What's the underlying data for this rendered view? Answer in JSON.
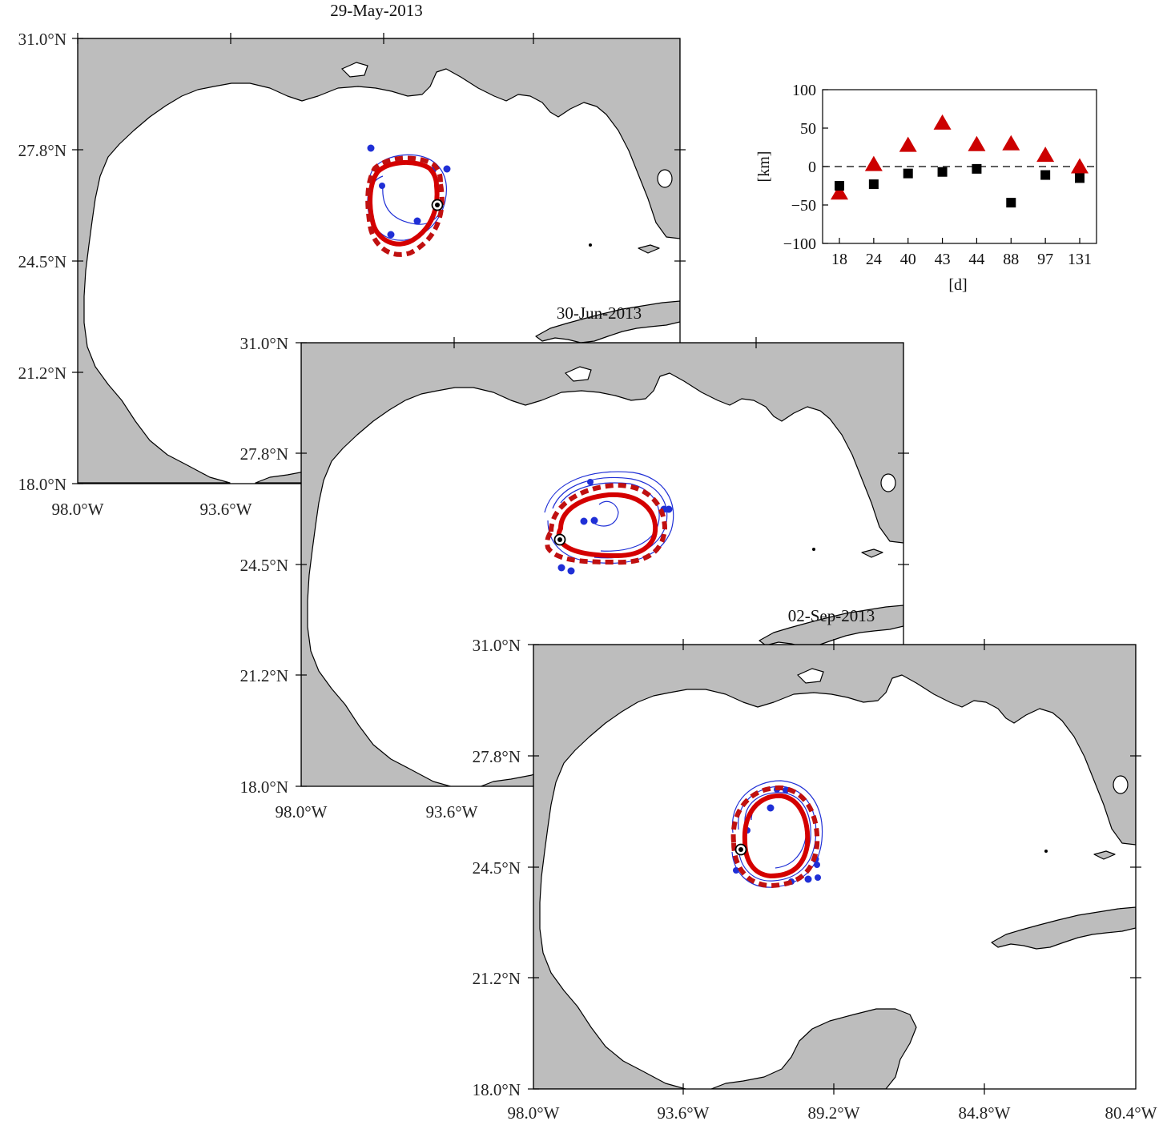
{
  "maps": [
    {
      "date": "29-May-2013",
      "lat_labels": [
        "31.0°N",
        "27.8°N",
        "24.5°N",
        "21.2°N",
        "18.0°N"
      ],
      "lon_labels": [
        "98.0°W",
        "93.6°W"
      ]
    },
    {
      "date": "30-Jun-2013",
      "lat_labels": [
        "31.0°N",
        "27.8°N",
        "24.5°N",
        "21.2°N",
        "18.0°N"
      ],
      "lon_labels": [
        "98.0°W",
        "93.6°W"
      ]
    },
    {
      "date": "02-Sep-2013",
      "lat_labels": [
        "31.0°N",
        "27.8°N",
        "24.5°N",
        "21.2°N",
        "18.0°N"
      ],
      "lon_labels": [
        "98.0°W",
        "93.6°W",
        "89.2°W",
        "84.8°W",
        "80.4°W"
      ]
    }
  ],
  "colors": {
    "land": "#bdbdbd",
    "drifter": "#1f2fd6",
    "contour": "#d40000",
    "triangle": "#cc0000",
    "square": "#000000"
  },
  "chart_data": {
    "type": "scatter",
    "xlabel": "[d]",
    "ylabel": "[km]",
    "ylim": [
      -100,
      100
    ],
    "yticks": [
      100,
      50,
      0,
      -50,
      -100
    ],
    "categories": [
      "18",
      "24",
      "40",
      "43",
      "44",
      "88",
      "97",
      "131"
    ],
    "zero_line": "dashed",
    "series": [
      {
        "marker": "triangle",
        "color": "#cc0000",
        "values": [
          -35,
          2,
          27,
          56,
          28,
          29,
          14,
          -1
        ]
      },
      {
        "marker": "square",
        "color": "#000000",
        "values": [
          -25,
          -23,
          -9,
          -7,
          -3,
          -47,
          -11,
          -15
        ]
      }
    ]
  }
}
